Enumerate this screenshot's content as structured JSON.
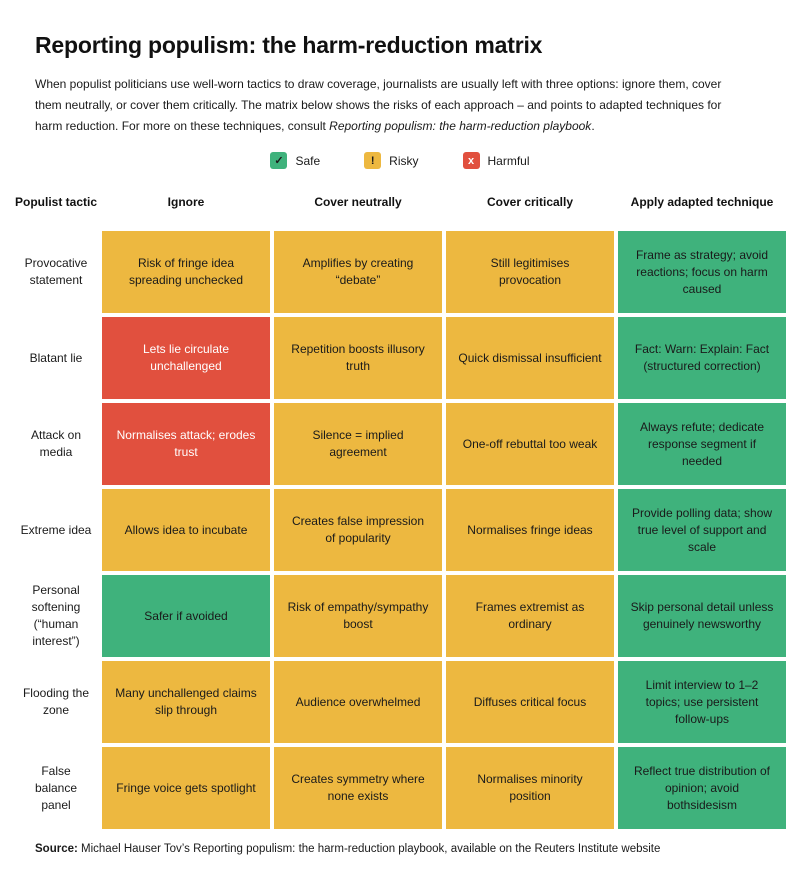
{
  "title": "Reporting populism: the harm-reduction matrix",
  "intro": {
    "text": "When populist politicians use well-worn tactics to draw coverage, journalists are usually left with three options: ignore them, cover them neutrally, or cover them critically. The matrix below shows the risks of each approach – and points to adapted techniques for harm reduction. For more on these techniques, consult ",
    "italic_ref": "Reporting populism: the harm-reduction playbook",
    "suffix": "."
  },
  "legend": {
    "items": [
      {
        "label": "Safe",
        "status": "safe",
        "glyph": "✓"
      },
      {
        "label": "Risky",
        "status": "risky",
        "glyph": "!"
      },
      {
        "label": "Harmful",
        "status": "harmful",
        "glyph": "x"
      }
    ]
  },
  "colors": {
    "safe": "#3FB27C",
    "risky": "#EDB840",
    "harmful": "#E1503E",
    "text_dark": "#1A1A1A",
    "text_on_harmful": "#FFFFFF"
  },
  "chart_data": {
    "type": "table",
    "title": "Reporting populism: the harm-reduction matrix",
    "columns": [
      "Populist tactic",
      "Ignore",
      "Cover neutrally",
      "Cover critically",
      "Apply adapted technique"
    ],
    "legend": [
      "Safe",
      "Risky",
      "Harmful"
    ],
    "rows": [
      {
        "tactic": "Provocative statement",
        "cells": [
          {
            "text": "Risk of fringe idea spreading unchecked",
            "status": "risky"
          },
          {
            "text": "Amplifies by creating “debate”",
            "status": "risky"
          },
          {
            "text": "Still legitimises provocation",
            "status": "risky"
          },
          {
            "text": "Frame as strategy; avoid reactions; focus on harm caused",
            "status": "safe"
          }
        ]
      },
      {
        "tactic": "Blatant lie",
        "cells": [
          {
            "text": "Lets lie circulate unchallenged",
            "status": "harmful"
          },
          {
            "text": "Repetition boosts illusory truth",
            "status": "risky"
          },
          {
            "text": "Quick dismissal insufficient",
            "status": "risky"
          },
          {
            "text": "Fact: Warn: Explain: Fact (structured correction)",
            "status": "safe"
          }
        ]
      },
      {
        "tactic": "Attack on media",
        "cells": [
          {
            "text": "Normalises attack; erodes trust",
            "status": "harmful"
          },
          {
            "text": "Silence = implied agreement",
            "status": "risky"
          },
          {
            "text": "One-off rebuttal too weak",
            "status": "risky"
          },
          {
            "text": "Always refute; dedicate response segment if needed",
            "status": "safe"
          }
        ]
      },
      {
        "tactic": "Extreme idea",
        "cells": [
          {
            "text": "Allows idea to incubate",
            "status": "risky"
          },
          {
            "text": "Creates false impression of popularity",
            "status": "risky"
          },
          {
            "text": "Normalises fringe ideas",
            "status": "risky"
          },
          {
            "text": "Provide polling data; show true level of support and scale",
            "status": "safe"
          }
        ]
      },
      {
        "tactic": "Personal softening (“human interest”)",
        "cells": [
          {
            "text": "Safer if avoided",
            "status": "safe"
          },
          {
            "text": "Risk of empathy/sympathy boost",
            "status": "risky"
          },
          {
            "text": "Frames extremist as ordinary",
            "status": "risky"
          },
          {
            "text": "Skip personal detail unless genuinely newsworthy",
            "status": "safe"
          }
        ]
      },
      {
        "tactic": "Flooding the zone",
        "cells": [
          {
            "text": "Many unchallenged claims slip through",
            "status": "risky"
          },
          {
            "text": "Audience overwhelmed",
            "status": "risky"
          },
          {
            "text": "Diffuses critical focus",
            "status": "risky"
          },
          {
            "text": "Limit interview to 1–2 topics; use persistent follow-ups",
            "status": "safe"
          }
        ]
      },
      {
        "tactic": "False balance panel",
        "cells": [
          {
            "text": "Fringe voice gets spotlight",
            "status": "risky"
          },
          {
            "text": "Creates symmetry where none exists",
            "status": "risky"
          },
          {
            "text": "Normalises minority position",
            "status": "risky"
          },
          {
            "text": "Reflect true distribution of opinion; avoid bothsidesism",
            "status": "safe"
          }
        ]
      }
    ]
  },
  "source": {
    "label": "Source:",
    "text": " Michael Hauser Tov’s Reporting populism: the harm-reduction playbook, available on the Reuters Institute website"
  }
}
